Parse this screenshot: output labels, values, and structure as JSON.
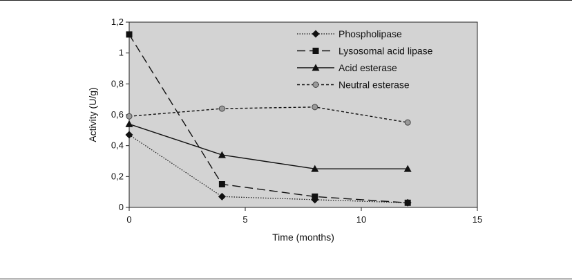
{
  "chart_data": {
    "type": "line",
    "title": "",
    "xlabel": "Time (months)",
    "ylabel": "Activity (U/g)",
    "xlim": [
      0,
      15
    ],
    "ylim": [
      0,
      1.2
    ],
    "x_ticks": [
      0,
      5,
      10,
      15
    ],
    "x_tick_labels": [
      "0",
      "5",
      "10",
      "15"
    ],
    "y_ticks": [
      0,
      0.2,
      0.4,
      0.6,
      0.8,
      1,
      1.2
    ],
    "y_tick_labels": [
      "0",
      "0,2",
      "0,4",
      "0,6",
      "0,8",
      "1",
      "1,2"
    ],
    "grid": false,
    "plot_background": "#d3d3d3",
    "legend_position": "top-right",
    "series": [
      {
        "name": "Phospholipase",
        "line_style": "dotted",
        "marker": "diamond",
        "color": "#111111",
        "x": [
          0,
          4,
          8,
          12
        ],
        "y": [
          0.47,
          0.07,
          0.05,
          0.03
        ]
      },
      {
        "name": "Lysosomal acid lipase",
        "line_style": "long-dash",
        "marker": "square",
        "color": "#111111",
        "x": [
          0,
          4,
          8,
          12
        ],
        "y": [
          1.12,
          0.15,
          0.07,
          0.03
        ]
      },
      {
        "name": "Acid esterase",
        "line_style": "solid",
        "marker": "triangle",
        "color": "#111111",
        "x": [
          0,
          4,
          8,
          12
        ],
        "y": [
          0.54,
          0.34,
          0.25,
          0.25
        ]
      },
      {
        "name": "Neutral esterase",
        "line_style": "short-dash",
        "marker": "circle",
        "color": "#111111",
        "marker_fill": "#9a9a9a",
        "x": [
          0,
          4,
          8,
          12
        ],
        "y": [
          0.59,
          0.64,
          0.65,
          0.55
        ]
      }
    ]
  }
}
